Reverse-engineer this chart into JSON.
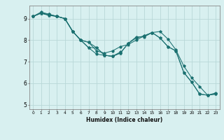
{
  "xlabel": "Humidex (Indice chaleur)",
  "ylabel": "",
  "bg_color": "#d8f0f0",
  "grid_color": "#b8d8d8",
  "line_color": "#1a7070",
  "xlim": [
    -0.5,
    23.5
  ],
  "ylim": [
    4.8,
    9.6
  ],
  "xticks": [
    0,
    1,
    2,
    3,
    4,
    5,
    6,
    7,
    8,
    9,
    10,
    11,
    12,
    13,
    14,
    15,
    16,
    17,
    18,
    19,
    20,
    21,
    22,
    23
  ],
  "yticks": [
    5,
    6,
    7,
    8,
    9
  ],
  "lines": [
    {
      "x": [
        0,
        1,
        2,
        3,
        4,
        5,
        6,
        7,
        8,
        9,
        10,
        11,
        12,
        13,
        14,
        15,
        16,
        17,
        18,
        19,
        20,
        21,
        22,
        23
      ],
      "y": [
        9.1,
        9.25,
        9.15,
        9.1,
        9.0,
        8.4,
        8.0,
        7.65,
        7.35,
        7.3,
        7.25,
        7.4,
        7.85,
        8.15,
        8.15,
        8.35,
        8.1,
        7.7,
        7.5,
        6.5,
        6.05,
        5.5,
        5.45,
        5.5
      ]
    },
    {
      "x": [
        0,
        1,
        2,
        3,
        4,
        5,
        6,
        7,
        8,
        9,
        10,
        11,
        12,
        13,
        14,
        15,
        16,
        17,
        18,
        19,
        20,
        21,
        22,
        23
      ],
      "y": [
        9.1,
        9.3,
        9.2,
        9.1,
        9.0,
        8.4,
        8.0,
        7.9,
        7.5,
        7.4,
        7.5,
        7.7,
        7.8,
        8.0,
        8.2,
        8.35,
        8.4,
        8.05,
        7.55,
        6.8,
        6.25,
        5.85,
        5.45,
        5.55
      ]
    },
    {
      "x": [
        0,
        1,
        2,
        3,
        4,
        5,
        6,
        7,
        8,
        9,
        10,
        11
      ],
      "y": [
        9.1,
        9.25,
        9.15,
        9.1,
        9.0,
        8.4,
        8.0,
        7.65,
        7.65,
        7.3,
        7.25,
        7.45
      ]
    },
    {
      "x": [
        0,
        1,
        2,
        3,
        4,
        5,
        6,
        7,
        8,
        9,
        10,
        11,
        12,
        13,
        14,
        15,
        16,
        17,
        18,
        19,
        20,
        21,
        22,
        23
      ],
      "y": [
        9.1,
        9.25,
        9.2,
        9.1,
        9.0,
        8.4,
        8.0,
        7.9,
        7.65,
        7.3,
        7.25,
        7.4,
        7.85,
        8.1,
        8.2,
        8.35,
        8.1,
        7.7,
        7.5,
        6.5,
        6.05,
        5.5,
        5.45,
        5.5
      ]
    }
  ]
}
